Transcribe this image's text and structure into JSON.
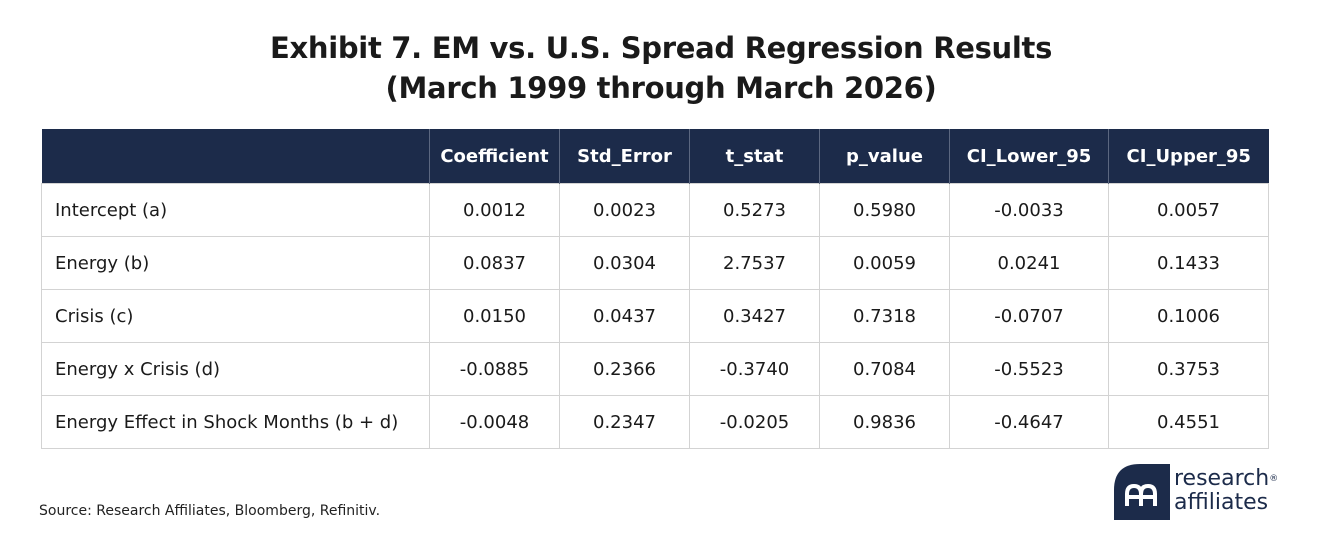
{
  "title": {
    "line1": "Exhibit 7. EM vs. U.S. Spread Regression Results",
    "line2": "(March 1999 through March 2026)"
  },
  "chart_data": {
    "type": "table",
    "columns": [
      "",
      "Coefficient",
      "Std_Error",
      "t_stat",
      "p_value",
      "CI_Lower_95",
      "CI_Upper_95"
    ],
    "rows": [
      [
        "Intercept (a)",
        "0.0012",
        "0.0023",
        "0.5273",
        "0.5980",
        "-0.0033",
        "0.0057"
      ],
      [
        "Energy (b)",
        "0.0837",
        "0.0304",
        "2.7537",
        "0.0059",
        "0.0241",
        "0.1433"
      ],
      [
        "Crisis (c)",
        "0.0150",
        "0.0437",
        "0.3427",
        "0.7318",
        "-0.0707",
        "0.1006"
      ],
      [
        "Energy x Crisis (d)",
        "-0.0885",
        "0.2366",
        "-0.3740",
        "0.7084",
        "-0.5523",
        "0.3753"
      ],
      [
        "Energy Effect in Shock Months (b + d)",
        "-0.0048",
        "0.2347",
        "-0.0205",
        "0.9836",
        "-0.4647",
        "0.4551"
      ]
    ]
  },
  "source": "Source: Research Affiliates, Bloomberg, Refinitiv.",
  "logo": {
    "line1": "research",
    "line2": "affiliates",
    "mark": "®",
    "brand_color": "#1c2b4a",
    "icon": "research-affiliates-logo-icon"
  },
  "colors": {
    "header_bg": "#1c2b4a",
    "header_text": "#ffffff",
    "grid": "#d3d3d3"
  }
}
